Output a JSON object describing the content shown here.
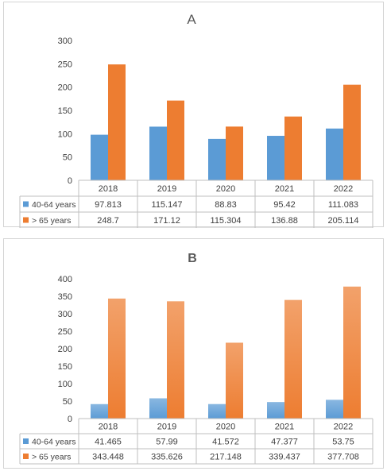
{
  "chart_data": [
    {
      "type": "bar",
      "title": "A",
      "categories": [
        "2018",
        "2019",
        "2020",
        "2021",
        "2022"
      ],
      "series": [
        {
          "name": "40-64 years",
          "values": [
            97.813,
            115.147,
            88.83,
            95.42,
            111.083
          ],
          "value_labels": [
            "97.813",
            "115.147",
            "88.83",
            "95.42",
            "111.083"
          ],
          "color": "#5B9BD5"
        },
        {
          "name": "> 65 years",
          "values": [
            248.7,
            171.12,
            115.304,
            136.88,
            205.114
          ],
          "value_labels": [
            "248.7",
            "171.12",
            "115.304",
            "136.88",
            "205.114"
          ],
          "color": "#ED7D31"
        }
      ],
      "yticks": [
        "0",
        "50",
        "100",
        "150",
        "200",
        "250",
        "300"
      ],
      "ylim": [
        0,
        300
      ],
      "grid": false,
      "legend": "data-table",
      "bar_style": "flat"
    },
    {
      "type": "bar",
      "title": "B",
      "categories": [
        "2018",
        "2019",
        "2020",
        "2021",
        "2022"
      ],
      "series": [
        {
          "name": "40-64 years",
          "values": [
            41.465,
            57.99,
            41.572,
            47.377,
            53.75
          ],
          "value_labels": [
            "41.465",
            "57.99",
            "41.572",
            "47.377",
            "53.75"
          ],
          "color": "#5B9BD5"
        },
        {
          "name": "> 65 years",
          "values": [
            343.448,
            335.626,
            217.148,
            339.437,
            377.708
          ],
          "value_labels": [
            "343.448",
            "335.626",
            "217.148",
            "339.437",
            "377.708"
          ],
          "color": "#ED7D31"
        }
      ],
      "yticks": [
        "0",
        "50",
        "100",
        "150",
        "200",
        "250",
        "300",
        "350",
        "400"
      ],
      "ylim": [
        0,
        400
      ],
      "grid": false,
      "legend": "data-table",
      "bar_style": "gradient"
    }
  ]
}
